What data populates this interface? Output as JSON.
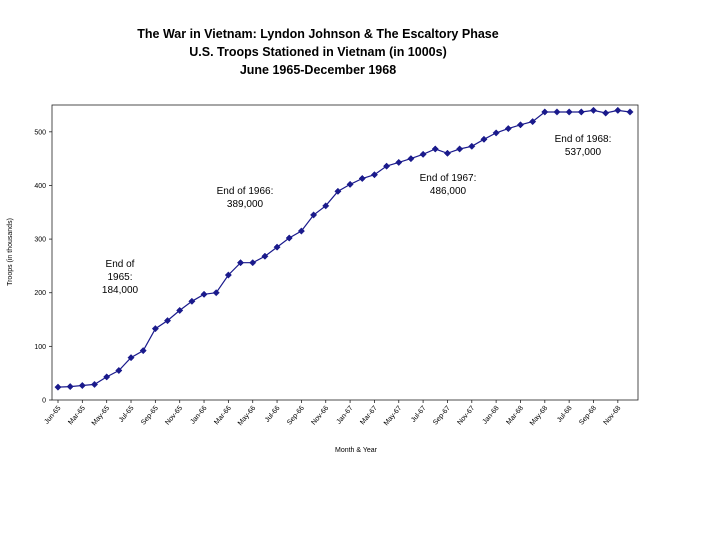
{
  "chart_data": {
    "type": "line",
    "title": "The War in Vietnam: Lyndon Johnson & The Escaltory Phase",
    "subtitle": "U.S. Troops Stationed in Vietnam (in 1000s)",
    "subtitle2": "June 1965-December 1968",
    "xlabel": "Month & Year",
    "ylabel": "Troops (in thousands)",
    "ylim": [
      0,
      550
    ],
    "yticks": [
      0,
      100,
      200,
      300,
      400,
      500
    ],
    "grid": false,
    "legend": "none",
    "color": "#1a1a8c",
    "x_tick_labels": [
      "Jun-65",
      "Mar-65",
      "May-65",
      "Jul-65",
      "Sep-65",
      "Nov-65",
      "Jan-66",
      "Mar-66",
      "May-66",
      "Jul-66",
      "Sep-66",
      "Nov-66",
      "Jan-67",
      "Mar-67",
      "May-67",
      "Jul-67",
      "Sep-67",
      "Nov-67",
      "Jan-68",
      "Mar-68",
      "May-68",
      "Jul-68",
      "Sep-68",
      "Nov-68"
    ],
    "series": [
      {
        "name": "U.S. Troops",
        "values": [
          24,
          25,
          27,
          29,
          43,
          55,
          79,
          92,
          133,
          148,
          167,
          184,
          197,
          200,
          233,
          256,
          256,
          268,
          285,
          302,
          315,
          345,
          362,
          389,
          402,
          413,
          420,
          436,
          443,
          450,
          458,
          468,
          460,
          468,
          473,
          486,
          498,
          506,
          513,
          519,
          537,
          537,
          537,
          537,
          540,
          535,
          540,
          537
        ]
      }
    ],
    "annotations": [
      {
        "lines": [
          "End of",
          "1965:",
          "184,000"
        ],
        "text": "End of 1965: 184,000"
      },
      {
        "lines": [
          "End of 1966:",
          "389,000"
        ],
        "text": "End of 1966: 389,000"
      },
      {
        "lines": [
          "End of 1967:",
          "486,000"
        ],
        "text": "End of 1967: 486,000"
      },
      {
        "lines": [
          "End of 1968:",
          "537,000"
        ],
        "text": "End of 1968: 537,000"
      }
    ]
  }
}
